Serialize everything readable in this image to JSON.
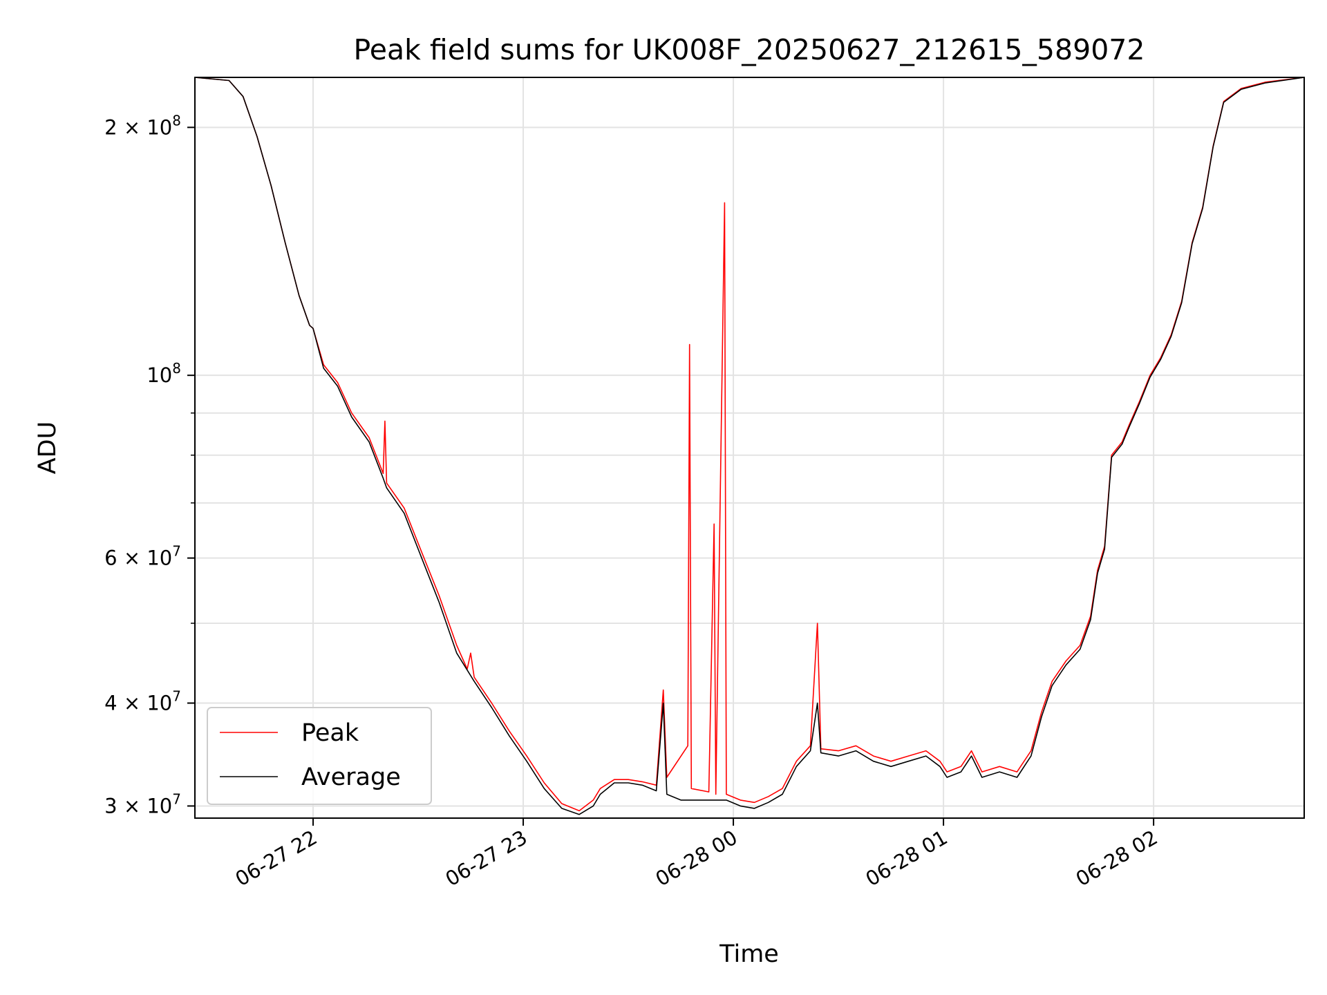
{
  "chart_data": {
    "type": "line",
    "title": "Peak field sums for UK008F_20250627_212615_589072",
    "xlabel": "Time",
    "ylabel": "ADU",
    "x_type": "datetime",
    "xlim": [
      "2025-06-27 21:26:15",
      "2025-06-28 02:43:00"
    ],
    "ylim": [
      29000000,
      230000000
    ],
    "yscale": "log",
    "grid": true,
    "legend": {
      "position": "lower-left"
    },
    "x_ticks": [
      {
        "value": "2025-06-27 22:00",
        "label": "06-27 22"
      },
      {
        "value": "2025-06-27 23:00",
        "label": "06-27 23"
      },
      {
        "value": "2025-06-28 00:00",
        "label": "06-28 00"
      },
      {
        "value": "2025-06-28 01:00",
        "label": "06-28 01"
      },
      {
        "value": "2025-06-28 02:00",
        "label": "06-28 02"
      }
    ],
    "y_ticks": [
      {
        "value": 30000000,
        "base": "3",
        "sep": " × 10",
        "exp": "7"
      },
      {
        "value": 40000000,
        "base": "4",
        "sep": " × 10",
        "exp": "7"
      },
      {
        "value": 60000000,
        "base": "6",
        "sep": " × 10",
        "exp": "7"
      },
      {
        "value": 100000000,
        "base": "",
        "sep": "10",
        "exp": "8"
      },
      {
        "value": 200000000,
        "base": "2",
        "sep": " × 10",
        "exp": "8"
      }
    ],
    "y_minor_ticks": [
      50000000,
      70000000,
      80000000,
      90000000
    ],
    "series": [
      {
        "name": "Peak",
        "color": "#ff0000",
        "points": [
          [
            "2025-06-27 21:26:15",
            230000000
          ],
          [
            "2025-06-27 21:36:00",
            228000000
          ],
          [
            "2025-06-27 21:40:00",
            218000000
          ],
          [
            "2025-06-27 21:44:00",
            195000000
          ],
          [
            "2025-06-27 21:48:00",
            170000000
          ],
          [
            "2025-06-27 21:52:00",
            145000000
          ],
          [
            "2025-06-27 21:56:00",
            125000000
          ],
          [
            "2025-06-27 21:59:00",
            115000000
          ],
          [
            "2025-06-27 22:00:00",
            114000000
          ],
          [
            "2025-06-27 22:03:00",
            103000000
          ],
          [
            "2025-06-27 22:07:00",
            98000000
          ],
          [
            "2025-06-27 22:11:00",
            90000000
          ],
          [
            "2025-06-27 22:16:00",
            84000000
          ],
          [
            "2025-06-27 22:20:00",
            76000000
          ],
          [
            "2025-06-27 22:20:30",
            88000000
          ],
          [
            "2025-06-27 22:21:00",
            74000000
          ],
          [
            "2025-06-27 22:26:00",
            69000000
          ],
          [
            "2025-06-27 22:31:00",
            61000000
          ],
          [
            "2025-06-27 22:36:00",
            54000000
          ],
          [
            "2025-06-27 22:41:00",
            47000000
          ],
          [
            "2025-06-27 22:44:00",
            44000000
          ],
          [
            "2025-06-27 22:45:00",
            46000000
          ],
          [
            "2025-06-27 22:46:00",
            43000000
          ],
          [
            "2025-06-27 22:51:00",
            40000000
          ],
          [
            "2025-06-27 22:56:00",
            37000000
          ],
          [
            "2025-06-27 23:01:00",
            34500000
          ],
          [
            "2025-06-27 23:06:00",
            32000000
          ],
          [
            "2025-06-27 23:11:00",
            30200000
          ],
          [
            "2025-06-27 23:16:00",
            29600000
          ],
          [
            "2025-06-27 23:20:00",
            30500000
          ],
          [
            "2025-06-27 23:22:00",
            31500000
          ],
          [
            "2025-06-27 23:26:00",
            32300000
          ],
          [
            "2025-06-27 23:30:00",
            32300000
          ],
          [
            "2025-06-27 23:34:00",
            32100000
          ],
          [
            "2025-06-27 23:38:00",
            31800000
          ],
          [
            "2025-06-27 23:40:00",
            41500000
          ],
          [
            "2025-06-27 23:41:00",
            32500000
          ],
          [
            "2025-06-27 23:47:00",
            35500000
          ],
          [
            "2025-06-27 23:47:30",
            109000000
          ],
          [
            "2025-06-27 23:48:00",
            31500000
          ],
          [
            "2025-06-27 23:53:00",
            31200000
          ],
          [
            "2025-06-27 23:54:30",
            66000000
          ],
          [
            "2025-06-27 23:55:00",
            31000000
          ],
          [
            "2025-06-27 23:57:30",
            162000000
          ],
          [
            "2025-06-27 23:58:00",
            31000000
          ],
          [
            "2025-06-28 00:02:00",
            30500000
          ],
          [
            "2025-06-28 00:06:00",
            30300000
          ],
          [
            "2025-06-28 00:10:00",
            30800000
          ],
          [
            "2025-06-28 00:14:00",
            31500000
          ],
          [
            "2025-06-28 00:18:00",
            34000000
          ],
          [
            "2025-06-28 00:22:00",
            35500000
          ],
          [
            "2025-06-28 00:24:00",
            50000000
          ],
          [
            "2025-06-28 00:25:00",
            35200000
          ],
          [
            "2025-06-28 00:30:00",
            35000000
          ],
          [
            "2025-06-28 00:35:00",
            35500000
          ],
          [
            "2025-06-28 00:40:00",
            34500000
          ],
          [
            "2025-06-28 00:45:00",
            34000000
          ],
          [
            "2025-06-28 00:50:00",
            34500000
          ],
          [
            "2025-06-28 00:55:00",
            35000000
          ],
          [
            "2025-06-28 00:59:00",
            34000000
          ],
          [
            "2025-06-28 01:01:00",
            33000000
          ],
          [
            "2025-06-28 01:05:00",
            33500000
          ],
          [
            "2025-06-28 01:08:00",
            35000000
          ],
          [
            "2025-06-28 01:11:00",
            33000000
          ],
          [
            "2025-06-28 01:16:00",
            33500000
          ],
          [
            "2025-06-28 01:21:00",
            33000000
          ],
          [
            "2025-06-28 01:25:00",
            35000000
          ],
          [
            "2025-06-28 01:28:00",
            39000000
          ],
          [
            "2025-06-28 01:31:00",
            42500000
          ],
          [
            "2025-06-28 01:35:00",
            45000000
          ],
          [
            "2025-06-28 01:39:00",
            47000000
          ],
          [
            "2025-06-28 01:42:00",
            51000000
          ],
          [
            "2025-06-28 01:44:00",
            58000000
          ],
          [
            "2025-06-28 01:46:00",
            62000000
          ],
          [
            "2025-06-28 01:48:00",
            80000000
          ],
          [
            "2025-06-28 01:51:00",
            83000000
          ],
          [
            "2025-06-28 01:53:00",
            87000000
          ],
          [
            "2025-06-28 01:56:00",
            93000000
          ],
          [
            "2025-06-28 01:59:00",
            100000000
          ],
          [
            "2025-06-28 02:02:00",
            105000000
          ],
          [
            "2025-06-28 02:05:00",
            112000000
          ],
          [
            "2025-06-28 02:08:00",
            123000000
          ],
          [
            "2025-06-28 02:11:00",
            145000000
          ],
          [
            "2025-06-28 02:14:00",
            160000000
          ],
          [
            "2025-06-28 02:17:00",
            190000000
          ],
          [
            "2025-06-28 02:20:00",
            215000000
          ],
          [
            "2025-06-28 02:25:00",
            223000000
          ],
          [
            "2025-06-28 02:32:00",
            227000000
          ],
          [
            "2025-06-28 02:43:00",
            230000000
          ]
        ]
      },
      {
        "name": "Average",
        "color": "#000000",
        "points": [
          [
            "2025-06-27 21:26:15",
            230000000
          ],
          [
            "2025-06-27 21:36:00",
            228000000
          ],
          [
            "2025-06-27 21:40:00",
            218000000
          ],
          [
            "2025-06-27 21:44:00",
            195000000
          ],
          [
            "2025-06-27 21:48:00",
            170000000
          ],
          [
            "2025-06-27 21:52:00",
            145000000
          ],
          [
            "2025-06-27 21:56:00",
            125000000
          ],
          [
            "2025-06-27 21:59:00",
            115000000
          ],
          [
            "2025-06-27 22:00:00",
            114000000
          ],
          [
            "2025-06-27 22:03:00",
            102000000
          ],
          [
            "2025-06-27 22:07:00",
            97000000
          ],
          [
            "2025-06-27 22:11:00",
            89000000
          ],
          [
            "2025-06-27 22:16:00",
            83000000
          ],
          [
            "2025-06-27 22:20:00",
            75000000
          ],
          [
            "2025-06-27 22:21:00",
            73000000
          ],
          [
            "2025-06-27 22:26:00",
            68000000
          ],
          [
            "2025-06-27 22:31:00",
            60000000
          ],
          [
            "2025-06-27 22:36:00",
            53000000
          ],
          [
            "2025-06-27 22:41:00",
            46000000
          ],
          [
            "2025-06-27 22:46:00",
            42500000
          ],
          [
            "2025-06-27 22:51:00",
            39500000
          ],
          [
            "2025-06-27 22:56:00",
            36500000
          ],
          [
            "2025-06-27 23:01:00",
            34000000
          ],
          [
            "2025-06-27 23:06:00",
            31500000
          ],
          [
            "2025-06-27 23:11:00",
            29800000
          ],
          [
            "2025-06-27 23:16:00",
            29300000
          ],
          [
            "2025-06-27 23:20:00",
            30000000
          ],
          [
            "2025-06-27 23:22:00",
            31000000
          ],
          [
            "2025-06-27 23:26:00",
            32000000
          ],
          [
            "2025-06-27 23:30:00",
            32000000
          ],
          [
            "2025-06-27 23:34:00",
            31800000
          ],
          [
            "2025-06-27 23:38:00",
            31300000
          ],
          [
            "2025-06-27 23:40:00",
            40000000
          ],
          [
            "2025-06-27 23:41:00",
            31000000
          ],
          [
            "2025-06-27 23:45:00",
            30500000
          ],
          [
            "2025-06-27 23:48:00",
            30500000
          ],
          [
            "2025-06-27 23:53:00",
            30500000
          ],
          [
            "2025-06-27 23:58:00",
            30500000
          ],
          [
            "2025-06-28 00:02:00",
            30000000
          ],
          [
            "2025-06-28 00:06:00",
            29800000
          ],
          [
            "2025-06-28 00:10:00",
            30300000
          ],
          [
            "2025-06-28 00:14:00",
            31000000
          ],
          [
            "2025-06-28 00:18:00",
            33500000
          ],
          [
            "2025-06-28 00:22:00",
            35000000
          ],
          [
            "2025-06-28 00:24:00",
            40000000
          ],
          [
            "2025-06-28 00:25:00",
            34800000
          ],
          [
            "2025-06-28 00:30:00",
            34500000
          ],
          [
            "2025-06-28 00:35:00",
            35000000
          ],
          [
            "2025-06-28 00:40:00",
            34000000
          ],
          [
            "2025-06-28 00:45:00",
            33500000
          ],
          [
            "2025-06-28 00:50:00",
            34000000
          ],
          [
            "2025-06-28 00:55:00",
            34500000
          ],
          [
            "2025-06-28 00:59:00",
            33500000
          ],
          [
            "2025-06-28 01:01:00",
            32500000
          ],
          [
            "2025-06-28 01:05:00",
            33000000
          ],
          [
            "2025-06-28 01:08:00",
            34500000
          ],
          [
            "2025-06-28 01:11:00",
            32500000
          ],
          [
            "2025-06-28 01:16:00",
            33000000
          ],
          [
            "2025-06-28 01:21:00",
            32500000
          ],
          [
            "2025-06-28 01:25:00",
            34500000
          ],
          [
            "2025-06-28 01:28:00",
            38500000
          ],
          [
            "2025-06-28 01:31:00",
            42000000
          ],
          [
            "2025-06-28 01:35:00",
            44500000
          ],
          [
            "2025-06-28 01:39:00",
            46500000
          ],
          [
            "2025-06-28 01:42:00",
            50500000
          ],
          [
            "2025-06-28 01:44:00",
            57500000
          ],
          [
            "2025-06-28 01:46:00",
            61500000
          ],
          [
            "2025-06-28 01:48:00",
            79500000
          ],
          [
            "2025-06-28 01:51:00",
            82500000
          ],
          [
            "2025-06-28 01:53:00",
            86500000
          ],
          [
            "2025-06-28 01:56:00",
            92500000
          ],
          [
            "2025-06-28 01:59:00",
            99500000
          ],
          [
            "2025-06-28 02:02:00",
            104500000
          ],
          [
            "2025-06-28 02:05:00",
            111500000
          ],
          [
            "2025-06-28 02:08:00",
            122500000
          ],
          [
            "2025-06-28 02:11:00",
            144500000
          ],
          [
            "2025-06-28 02:14:00",
            159500000
          ],
          [
            "2025-06-28 02:17:00",
            189500000
          ],
          [
            "2025-06-28 02:20:00",
            214500000
          ],
          [
            "2025-06-28 02:25:00",
            222500000
          ],
          [
            "2025-06-28 02:32:00",
            226500000
          ],
          [
            "2025-06-28 02:43:00",
            230000000
          ]
        ]
      }
    ]
  }
}
